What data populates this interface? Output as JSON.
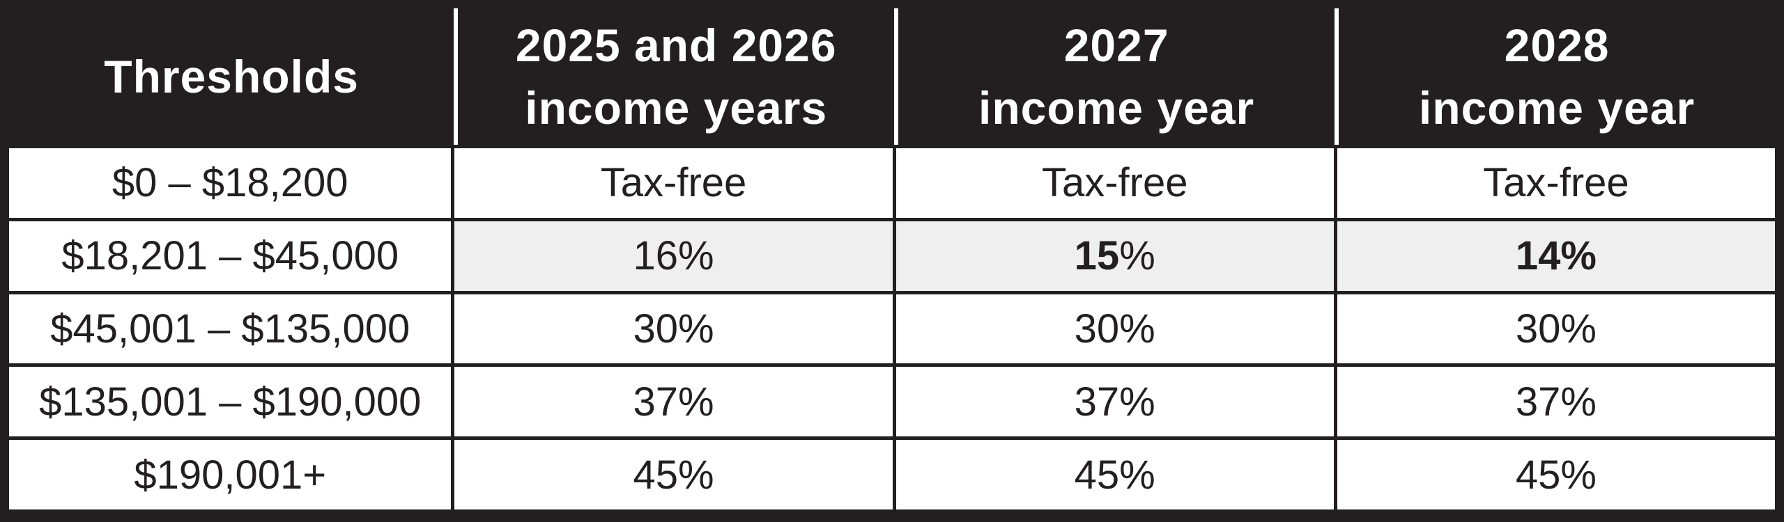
{
  "colors": {
    "frame_and_text_ink": "#231f20",
    "header_background": "#231f20",
    "header_text": "#ffffff",
    "cell_background": "#ffffff",
    "highlight_cell_background": "#efefef",
    "header_divider": "#ffffff"
  },
  "table": {
    "header": [
      {
        "lines": [
          "Thresholds"
        ]
      },
      {
        "lines": [
          "2025 and 2026",
          "income years"
        ]
      },
      {
        "lines": [
          "2027",
          "income year"
        ]
      },
      {
        "lines": [
          "2028",
          "income year"
        ]
      }
    ],
    "rows": [
      {
        "cells": [
          {
            "highlight": false,
            "parts": [
              {
                "t": "$0 – $18,200",
                "b": false
              }
            ]
          },
          {
            "highlight": false,
            "parts": [
              {
                "t": "Tax-free",
                "b": false
              }
            ]
          },
          {
            "highlight": false,
            "parts": [
              {
                "t": "Tax-free",
                "b": false
              }
            ]
          },
          {
            "highlight": false,
            "parts": [
              {
                "t": "Tax-free",
                "b": false
              }
            ]
          }
        ]
      },
      {
        "cells": [
          {
            "highlight": false,
            "parts": [
              {
                "t": "$18,201 – $45,000",
                "b": false
              }
            ]
          },
          {
            "highlight": true,
            "parts": [
              {
                "t": "16%",
                "b": false
              }
            ]
          },
          {
            "highlight": true,
            "parts": [
              {
                "t": "15",
                "b": true
              },
              {
                "t": "%",
                "b": false
              }
            ]
          },
          {
            "highlight": true,
            "parts": [
              {
                "t": "14%",
                "b": true
              }
            ]
          }
        ]
      },
      {
        "cells": [
          {
            "highlight": false,
            "parts": [
              {
                "t": "$45,001 – $135,000",
                "b": false
              }
            ]
          },
          {
            "highlight": false,
            "parts": [
              {
                "t": "30%",
                "b": false
              }
            ]
          },
          {
            "highlight": false,
            "parts": [
              {
                "t": "30%",
                "b": false
              }
            ]
          },
          {
            "highlight": false,
            "parts": [
              {
                "t": "30%",
                "b": false
              }
            ]
          }
        ]
      },
      {
        "cells": [
          {
            "highlight": false,
            "parts": [
              {
                "t": "$135,001 – $190,000",
                "b": false
              }
            ]
          },
          {
            "highlight": false,
            "parts": [
              {
                "t": "37%",
                "b": false
              }
            ]
          },
          {
            "highlight": false,
            "parts": [
              {
                "t": "37%",
                "b": false
              }
            ]
          },
          {
            "highlight": false,
            "parts": [
              {
                "t": "37%",
                "b": false
              }
            ]
          }
        ]
      },
      {
        "cells": [
          {
            "highlight": false,
            "parts": [
              {
                "t": "$190,001+",
                "b": false
              }
            ]
          },
          {
            "highlight": false,
            "parts": [
              {
                "t": "45%",
                "b": false
              }
            ]
          },
          {
            "highlight": false,
            "parts": [
              {
                "t": "45%",
                "b": false
              }
            ]
          },
          {
            "highlight": false,
            "parts": [
              {
                "t": "45%",
                "b": false
              }
            ]
          }
        ]
      }
    ]
  },
  "chart_data": {
    "type": "table",
    "title": "",
    "columns": [
      "Thresholds",
      "2025 and 2026 income years",
      "2027 income year",
      "2028 income year"
    ],
    "rows": [
      [
        "$0 – $18,200",
        "Tax-free",
        "Tax-free",
        "Tax-free"
      ],
      [
        "$18,201 – $45,000",
        "16%",
        "15%",
        "14%"
      ],
      [
        "$45,001 – $135,000",
        "30%",
        "30%",
        "30%"
      ],
      [
        "$135,001 – $190,000",
        "37%",
        "37%",
        "37%"
      ],
      [
        "$190,001+",
        "45%",
        "45%",
        "45%"
      ]
    ],
    "highlighted_row_index": 1,
    "highlighted_row_shaded_columns": [
      1,
      2,
      3
    ],
    "bold_cells": [
      [
        1,
        2
      ],
      [
        1,
        3
      ]
    ],
    "layout_hints": {
      "header_style": "black background, white bold text, white column dividers",
      "grid": "thin black gridlines, thick black outer frame",
      "alignment": "all cells centered"
    }
  }
}
